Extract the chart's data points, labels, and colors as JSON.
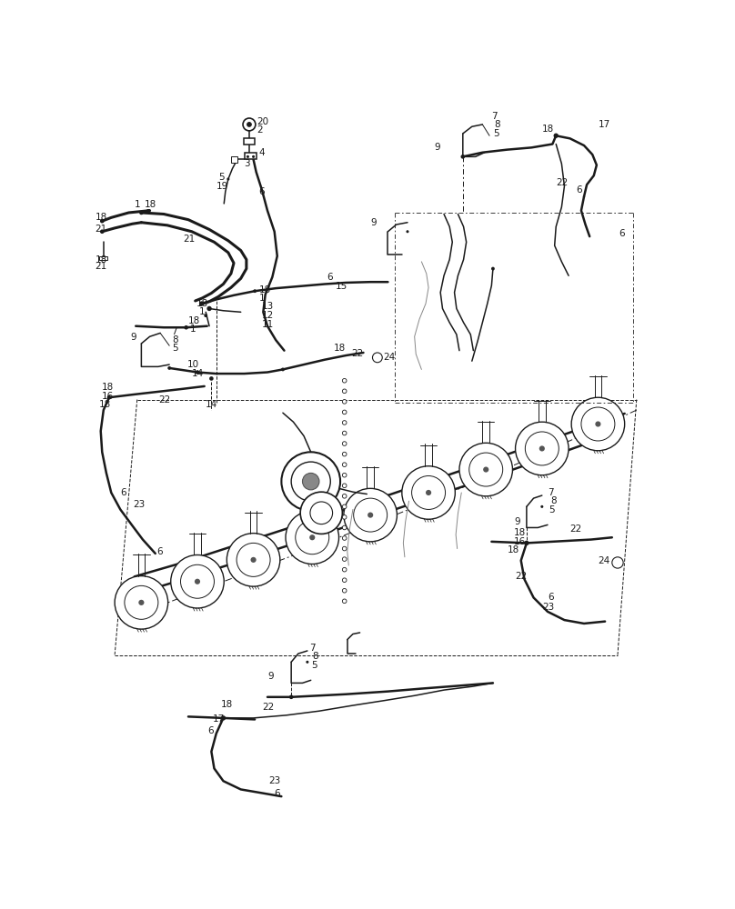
{
  "bg_color": "#ffffff",
  "lc": "#1a1a1a",
  "lc_gray": "#888888",
  "lc_light": "#aaaaaa",
  "figsize": [
    8.08,
    10.0
  ],
  "dpi": 100,
  "lw_thin": 0.7,
  "lw_med": 1.1,
  "lw_thick": 1.8,
  "lw_hose": 2.2,
  "fs": 7.5
}
